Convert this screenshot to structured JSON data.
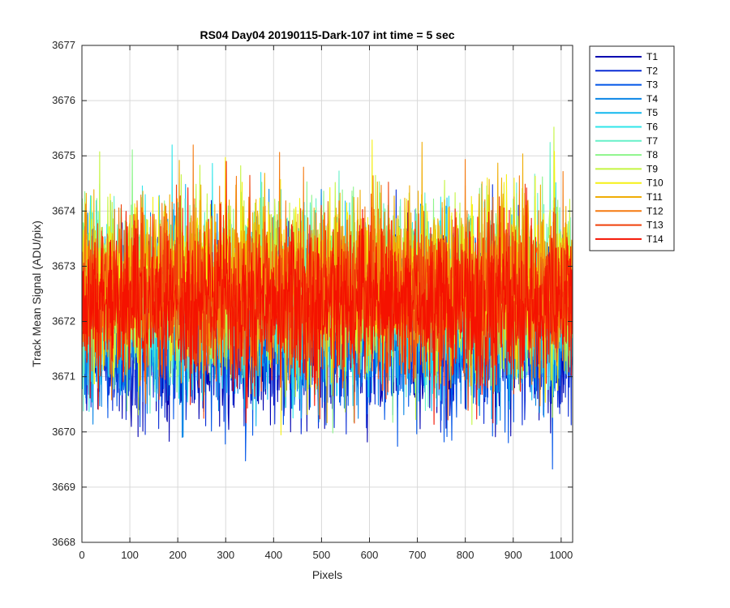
{
  "chart_data": {
    "type": "line",
    "title": "RS04 Day04 20190115-Dark-107 int time = 5 sec",
    "xlabel": "Pixels",
    "ylabel": "Track Mean Signal (ADU/pix)",
    "xlim": [
      0,
      1024
    ],
    "ylim": [
      3668,
      3677
    ],
    "xticks": [
      0,
      100,
      200,
      300,
      400,
      500,
      600,
      700,
      800,
      900,
      1000
    ],
    "yticks": [
      3668,
      3669,
      3670,
      3671,
      3672,
      3673,
      3674,
      3675,
      3676,
      3677
    ],
    "grid": true,
    "legend_position": "outside-right",
    "n_points": 1024,
    "series_note": "noisy per-pixel track means; each series given by mean, spread (std) and clipped range in ADU",
    "series": [
      {
        "name": "T1",
        "color": "#0000b0",
        "mean": 3671.7,
        "std": 0.75,
        "min": 3669.8,
        "max": 3675.3
      },
      {
        "name": "T2",
        "color": "#0a2dd6",
        "mean": 3671.8,
        "std": 0.75,
        "min": 3669.9,
        "max": 3675.3
      },
      {
        "name": "T3",
        "color": "#0055e8",
        "mean": 3671.9,
        "std": 0.75,
        "min": 3669.0,
        "max": 3675.5
      },
      {
        "name": "T4",
        "color": "#0a86e6",
        "mean": 3672.0,
        "std": 0.75,
        "min": 3669.9,
        "max": 3676.2
      },
      {
        "name": "T5",
        "color": "#12b8ee",
        "mean": 3672.2,
        "std": 0.75,
        "min": 3670.0,
        "max": 3675.7
      },
      {
        "name": "T6",
        "color": "#2fe6ea",
        "mean": 3672.4,
        "std": 0.75,
        "min": 3670.2,
        "max": 3675.8
      },
      {
        "name": "T7",
        "color": "#66f0c8",
        "mean": 3672.5,
        "std": 0.75,
        "min": 3670.3,
        "max": 3675.5
      },
      {
        "name": "T8",
        "color": "#8cf58a",
        "mean": 3672.6,
        "std": 0.75,
        "min": 3669.8,
        "max": 3676.0
      },
      {
        "name": "T9",
        "color": "#c4f542",
        "mean": 3672.6,
        "std": 0.75,
        "min": 3669.9,
        "max": 3675.6
      },
      {
        "name": "T10",
        "color": "#f5f015",
        "mean": 3672.7,
        "std": 0.75,
        "min": 3669.7,
        "max": 3675.6
      },
      {
        "name": "T11",
        "color": "#f0ad05",
        "mean": 3672.7,
        "std": 0.75,
        "min": 3669.5,
        "max": 3676.1
      },
      {
        "name": "T12",
        "color": "#f57a10",
        "mean": 3672.6,
        "std": 0.75,
        "min": 3669.0,
        "max": 3675.2
      },
      {
        "name": "T13",
        "color": "#f0400a",
        "mean": 3672.4,
        "std": 0.75,
        "min": 3668.5,
        "max": 3675.1
      },
      {
        "name": "T14",
        "color": "#f51200",
        "mean": 3672.3,
        "std": 0.7,
        "min": 3668.7,
        "max": 3675.3
      }
    ]
  }
}
